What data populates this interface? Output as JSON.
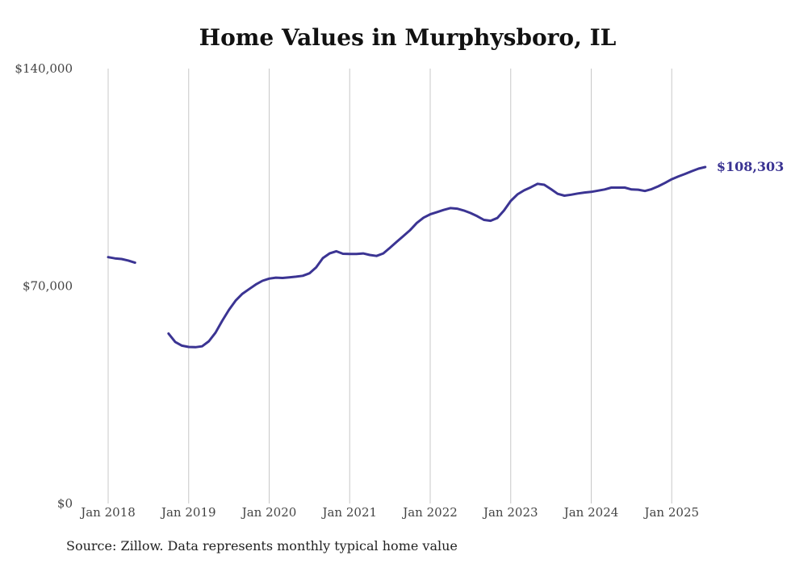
{
  "chart_data": {
    "type": "line",
    "title": "Home Values in Murphysboro, IL",
    "xlabel": "",
    "ylabel": "",
    "ylim": [
      0,
      140000
    ],
    "yticks": [
      "$0",
      "$70,000",
      "$140,000"
    ],
    "ytick_values": [
      0,
      70000,
      140000
    ],
    "xticks": [
      "Jan 2018",
      "Jan 2019",
      "Jan 2020",
      "Jan 2021",
      "Jan 2022",
      "Jan 2023",
      "Jan 2024",
      "Jan 2025"
    ],
    "grid": "vertical",
    "color": "#3b3493",
    "series": [
      {
        "segments": [
          [
            [
              "2018-01",
              79300
            ],
            [
              "2018-02",
              78900
            ],
            [
              "2018-03",
              78700
            ],
            [
              "2018-04",
              78200
            ],
            [
              "2018-05",
              77500
            ]
          ],
          [
            [
              "2018-10",
              54700
            ],
            [
              "2018-11",
              52000
            ],
            [
              "2018-12",
              50800
            ],
            [
              "2019-01",
              50400
            ],
            [
              "2019-02",
              50300
            ],
            [
              "2019-03",
              50600
            ],
            [
              "2019-04",
              52200
            ],
            [
              "2019-05",
              55000
            ],
            [
              "2019-06",
              58800
            ],
            [
              "2019-07",
              62300
            ],
            [
              "2019-08",
              65300
            ],
            [
              "2019-09",
              67500
            ],
            [
              "2019-10",
              69000
            ],
            [
              "2019-11",
              70500
            ],
            [
              "2019-12",
              71700
            ],
            [
              "2020-01",
              72400
            ],
            [
              "2020-02",
              72700
            ],
            [
              "2020-03",
              72600
            ],
            [
              "2020-04",
              72800
            ],
            [
              "2020-05",
              73000
            ],
            [
              "2020-06",
              73300
            ],
            [
              "2020-07",
              74100
            ],
            [
              "2020-08",
              76000
            ],
            [
              "2020-09",
              79000
            ],
            [
              "2020-10",
              80500
            ],
            [
              "2020-11",
              81200
            ],
            [
              "2020-12",
              80400
            ],
            [
              "2021-01",
              80300
            ],
            [
              "2021-02",
              80300
            ],
            [
              "2021-03",
              80500
            ],
            [
              "2021-04",
              80000
            ],
            [
              "2021-05",
              79700
            ],
            [
              "2021-06",
              80500
            ],
            [
              "2021-07",
              82300
            ],
            [
              "2021-08",
              84200
            ],
            [
              "2021-09",
              86100
            ],
            [
              "2021-10",
              88000
            ],
            [
              "2021-11",
              90300
            ],
            [
              "2021-12",
              92000
            ],
            [
              "2022-01",
              93100
            ],
            [
              "2022-02",
              93800
            ],
            [
              "2022-03",
              94500
            ],
            [
              "2022-04",
              95100
            ],
            [
              "2022-05",
              94900
            ],
            [
              "2022-06",
              94300
            ],
            [
              "2022-07",
              93500
            ],
            [
              "2022-08",
              92500
            ],
            [
              "2022-09",
              91300
            ],
            [
              "2022-10",
              91000
            ],
            [
              "2022-11",
              91900
            ],
            [
              "2022-12",
              94300
            ],
            [
              "2023-01",
              97400
            ],
            [
              "2023-02",
              99500
            ],
            [
              "2023-03",
              100800
            ],
            [
              "2023-04",
              101800
            ],
            [
              "2023-05",
              102900
            ],
            [
              "2023-06",
              102600
            ],
            [
              "2023-07",
              101200
            ],
            [
              "2023-08",
              99700
            ],
            [
              "2023-09",
              99100
            ],
            [
              "2023-10",
              99400
            ],
            [
              "2023-11",
              99800
            ],
            [
              "2023-12",
              100100
            ],
            [
              "2024-01",
              100300
            ],
            [
              "2024-02",
              100700
            ],
            [
              "2024-03",
              101100
            ],
            [
              "2024-04",
              101700
            ],
            [
              "2024-05",
              101700
            ],
            [
              "2024-06",
              101700
            ],
            [
              "2024-07",
              101100
            ],
            [
              "2024-08",
              101000
            ],
            [
              "2024-09",
              100600
            ],
            [
              "2024-10",
              101200
            ],
            [
              "2024-11",
              102100
            ],
            [
              "2024-12",
              103200
            ],
            [
              "2025-01",
              104400
            ],
            [
              "2025-02",
              105300
            ],
            [
              "2025-03",
              106100
            ],
            [
              "2025-04",
              107000
            ],
            [
              "2025-05",
              107800
            ],
            [
              "2025-06",
              108303
            ]
          ]
        ]
      }
    ],
    "end_label": "$108,303",
    "source": "Source: Zillow. Data represents monthly typical home value"
  }
}
